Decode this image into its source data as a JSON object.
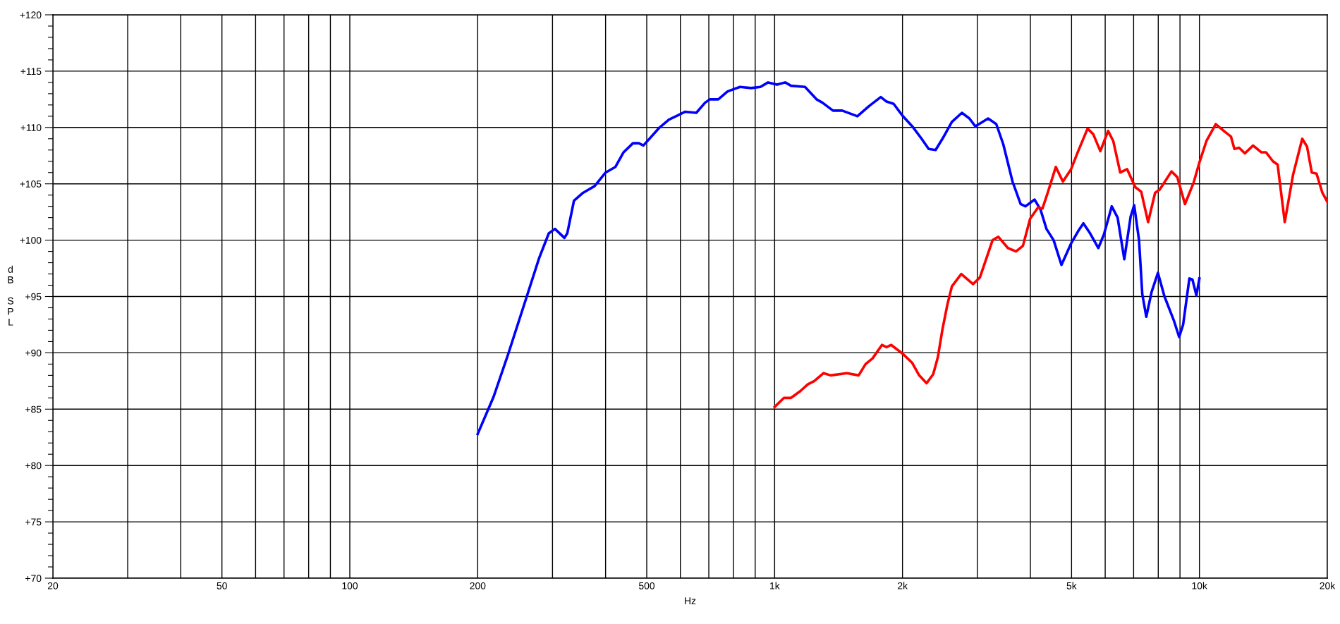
{
  "chart_data": {
    "type": "line",
    "xlabel": "Hz",
    "ylabel": "dB SPL",
    "log": "x",
    "grid": true,
    "marker": "none",
    "line_style": "solid",
    "xlim": [
      20,
      20000
    ],
    "ylim": [
      70,
      120
    ],
    "xticks": [
      20,
      {
        "value": 30,
        "label": null
      },
      {
        "value": 40,
        "label": null
      },
      50,
      {
        "value": 60,
        "label": null
      },
      {
        "value": 70,
        "label": null
      },
      {
        "value": 80,
        "label": null
      },
      {
        "value": 90,
        "label": null
      },
      100,
      200,
      {
        "value": 300,
        "label": null
      },
      {
        "value": 400,
        "label": null
      },
      500,
      {
        "value": 600,
        "label": null
      },
      {
        "value": 700,
        "label": null
      },
      {
        "value": 800,
        "label": null
      },
      {
        "value": 900,
        "label": null
      },
      {
        "value": 1000,
        "label": "1k"
      },
      {
        "value": 2000,
        "label": "2k"
      },
      {
        "value": 3000,
        "label": null
      },
      {
        "value": 4000,
        "label": null
      },
      {
        "value": 5000,
        "label": "5k"
      },
      {
        "value": 6000,
        "label": null
      },
      {
        "value": 7000,
        "label": null
      },
      {
        "value": 8000,
        "label": null
      },
      {
        "value": 9000,
        "label": null
      },
      {
        "value": 10000,
        "label": "10k"
      },
      {
        "value": 20000,
        "label": "20k"
      }
    ],
    "yticks": [
      {
        "value": 70,
        "label": "+70"
      },
      {
        "value": 75,
        "label": "+75"
      },
      {
        "value": 80,
        "label": "+80"
      },
      {
        "value": 85,
        "label": "+85"
      },
      {
        "value": 90,
        "label": "+90"
      },
      {
        "value": 95,
        "label": "+95"
      },
      {
        "value": 100,
        "label": "+100"
      },
      {
        "value": 105,
        "label": "+105"
      },
      {
        "value": 110,
        "label": "+110"
      },
      {
        "value": 115,
        "label": "+115"
      },
      {
        "value": 120,
        "label": "+120"
      }
    ],
    "series": [
      {
        "color": "#0000ff",
        "x": [
          200,
          218,
          236,
          262,
          279,
          294,
          304,
          320,
          325,
          337,
          354,
          377,
          400,
          422,
          441,
          464,
          479,
          491,
          536,
          564,
          594,
          616,
          654,
          686,
          704,
          737,
          775,
          829,
          880,
          926,
          965,
          1013,
          1059,
          1093,
          1179,
          1255,
          1296,
          1372,
          1443,
          1566,
          1669,
          1778,
          1834,
          1906,
          2005,
          2109,
          2218,
          2305,
          2393,
          2484,
          2614,
          2760,
          2874,
          2968,
          3181,
          3325,
          3454,
          3631,
          3794,
          3895,
          4093,
          4227,
          4364,
          4537,
          4734,
          4986,
          5183,
          5332,
          5530,
          5782,
          5958,
          6217,
          6418,
          6655,
          6889,
          7021,
          7208,
          7337,
          7497,
          7716,
          7985,
          8274,
          8700,
          8960,
          9154,
          9470,
          9628,
          9837,
          10000
        ],
        "values": [
          82.8,
          86.1,
          89.9,
          95.2,
          98.4,
          100.6,
          101.0,
          100.2,
          100.6,
          103.5,
          104.2,
          104.8,
          106.0,
          106.5,
          107.8,
          108.6,
          108.6,
          108.4,
          110.0,
          110.7,
          111.1,
          111.4,
          111.3,
          112.2,
          112.5,
          112.5,
          113.2,
          113.6,
          113.5,
          113.6,
          114.0,
          113.8,
          114.0,
          113.7,
          113.6,
          112.5,
          112.2,
          111.5,
          111.5,
          111.0,
          111.9,
          112.7,
          112.3,
          112.1,
          111.0,
          110.1,
          109.0,
          108.1,
          108.0,
          109.0,
          110.5,
          111.3,
          110.8,
          110.1,
          110.8,
          110.3,
          108.5,
          105.2,
          103.2,
          103.0,
          103.6,
          102.7,
          101.0,
          100.0,
          97.8,
          99.7,
          100.8,
          101.5,
          100.6,
          99.3,
          100.5,
          103.0,
          102.0,
          98.3,
          102.1,
          103.1,
          100.0,
          95.2,
          93.2,
          95.4,
          97.1,
          95.0,
          92.9,
          91.4,
          92.5,
          96.6,
          96.5,
          95.1,
          96.6
        ]
      },
      {
        "color": "#ff0000",
        "x": [
          1000,
          1052,
          1093,
          1149,
          1197,
          1240,
          1304,
          1355,
          1480,
          1577,
          1637,
          1700,
          1789,
          1834,
          1881,
          2005,
          2109,
          2189,
          2279,
          2362,
          2422,
          2484,
          2548,
          2614,
          2750,
          2931,
          3043,
          3159,
          3259,
          3363,
          3541,
          3700,
          3842,
          3994,
          4170,
          4270,
          4393,
          4591,
          4771,
          4987,
          5183,
          5454,
          5625,
          5845,
          6095,
          6268,
          6509,
          6758,
          7064,
          7294,
          7572,
          7864,
          8066,
          8594,
          8868,
          9246,
          9689,
          10000,
          10387,
          10925,
          11493,
          11861,
          12087,
          12399,
          12793,
          13375,
          13977,
          14341,
          14895,
          15279,
          15880,
          16612,
          17459,
          17921,
          18388,
          18866,
          19476,
          20000
        ],
        "values": [
          85.2,
          86.0,
          86.0,
          86.6,
          87.2,
          87.5,
          88.2,
          88.0,
          88.2,
          88.0,
          89.0,
          89.5,
          90.7,
          90.5,
          90.7,
          89.9,
          89.1,
          88.0,
          87.3,
          88.1,
          89.6,
          92.1,
          94.2,
          95.9,
          97.0,
          96.1,
          96.7,
          98.5,
          100.0,
          100.3,
          99.3,
          99.0,
          99.5,
          101.9,
          102.9,
          102.8,
          104.2,
          106.5,
          105.2,
          106.3,
          107.9,
          109.9,
          109.4,
          107.9,
          109.7,
          108.8,
          106.0,
          106.3,
          104.7,
          104.3,
          101.6,
          104.2,
          104.5,
          106.1,
          105.6,
          103.2,
          105.1,
          106.9,
          108.8,
          110.3,
          109.6,
          109.2,
          108.1,
          108.2,
          107.7,
          108.4,
          107.8,
          107.8,
          107.0,
          106.7,
          101.6,
          105.8,
          109.0,
          108.3,
          106.0,
          105.9,
          104.2,
          103.4
        ]
      }
    ]
  }
}
